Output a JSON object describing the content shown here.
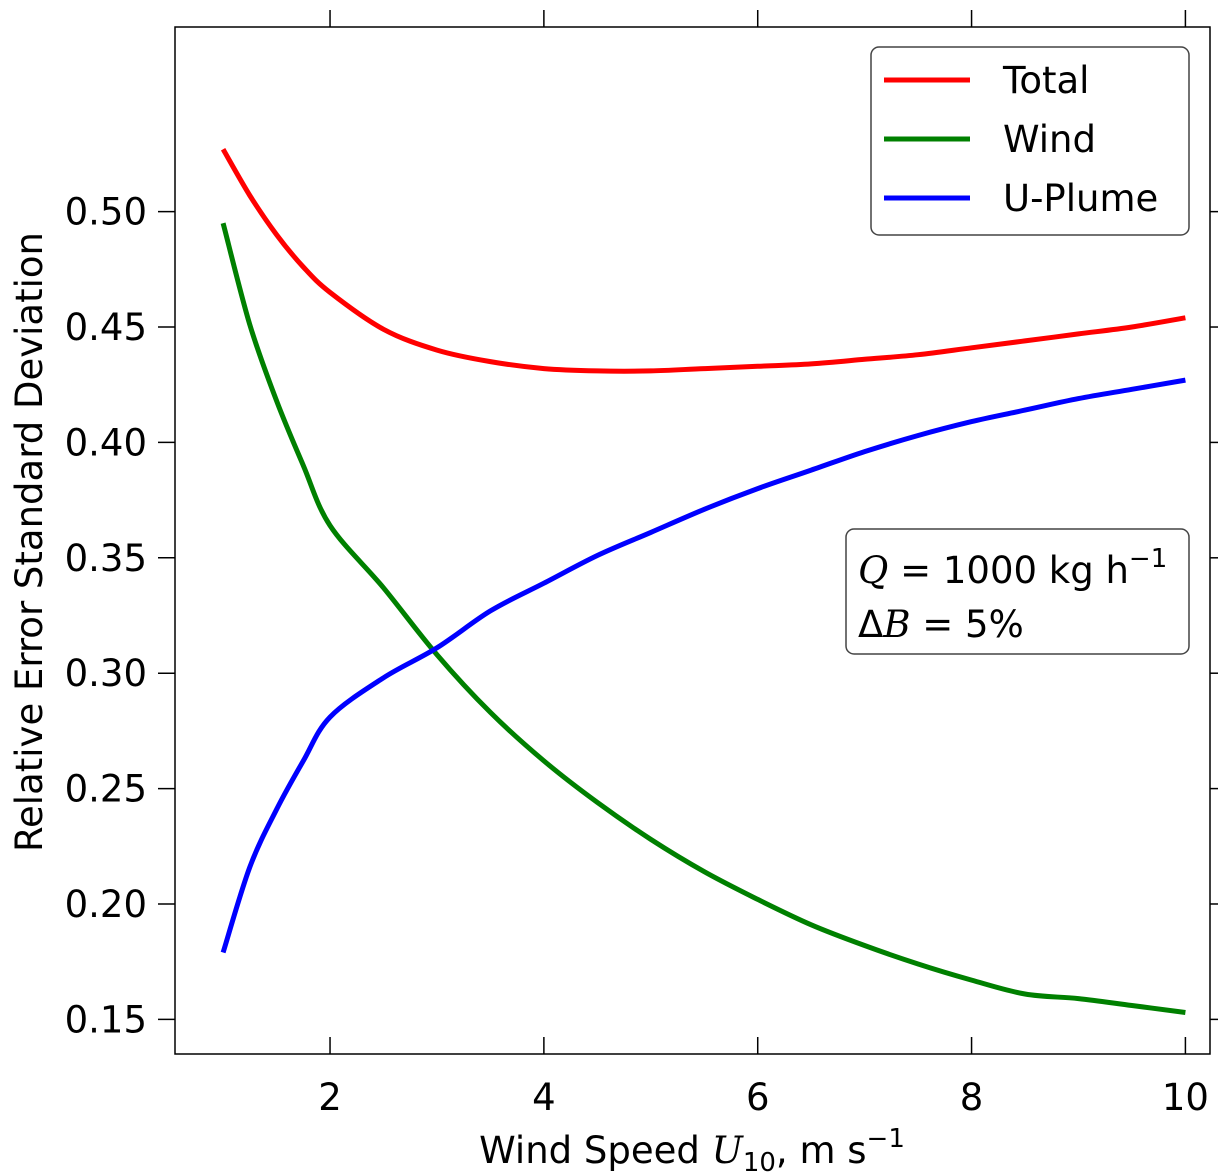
{
  "chart_data": {
    "type": "line",
    "title": "",
    "xlabel_prefix": "Wind Speed ",
    "xlabel_var": "U",
    "xlabel_sub": "10",
    "xlabel_unit": ", m s",
    "xlabel_sup": "−1",
    "ylabel": "Relative Error Standard Deviation",
    "xlim": [
      0.55,
      10.23
    ],
    "ylim": [
      0.135,
      0.58
    ],
    "xticks": [
      2,
      4,
      6,
      8,
      10
    ],
    "xtick_labels": [
      "2",
      "4",
      "6",
      "8",
      "10"
    ],
    "yticks": [
      0.15,
      0.2,
      0.25,
      0.3,
      0.35,
      0.4,
      0.45,
      0.5
    ],
    "ytick_labels": [
      "0.15",
      "0.20",
      "0.25",
      "0.30",
      "0.35",
      "0.40",
      "0.45",
      "0.50"
    ],
    "grid": false,
    "legend_position": "top-right",
    "x": [
      1,
      1.25,
      1.5,
      1.75,
      2,
      2.5,
      3,
      3.5,
      4,
      4.5,
      5,
      5.5,
      6,
      6.5,
      7,
      7.5,
      8,
      8.5,
      9,
      9.5,
      10
    ],
    "series": [
      {
        "name": "Total",
        "color": "#ff0000",
        "values": [
          0.527,
          0.507,
          0.49,
          0.476,
          0.465,
          0.449,
          0.44,
          0.435,
          0.432,
          0.431,
          0.431,
          0.432,
          0.433,
          0.434,
          0.436,
          0.438,
          0.441,
          0.444,
          0.447,
          0.45,
          0.454
        ]
      },
      {
        "name": "Wind",
        "color": "#008000",
        "values": [
          0.495,
          0.451,
          0.418,
          0.39,
          0.364,
          0.337,
          0.308,
          0.283,
          0.262,
          0.244,
          0.228,
          0.214,
          0.202,
          0.191,
          0.182,
          0.174,
          0.167,
          0.161,
          0.159,
          0.156,
          0.153
        ]
      },
      {
        "name": "U-Plume",
        "color": "#0000ff",
        "values": [
          0.179,
          0.216,
          0.241,
          0.262,
          0.281,
          0.298,
          0.311,
          0.327,
          0.339,
          0.351,
          0.361,
          0.371,
          0.38,
          0.388,
          0.396,
          0.403,
          0.409,
          0.414,
          0.419,
          0.423,
          0.427
        ]
      }
    ],
    "annotation": {
      "line1_var": "Q",
      "line1_rest": " = 1000 kg h",
      "line1_sup": "−1",
      "line2_delta": "Δ",
      "line2_var": "B",
      "line2_rest": " = 5%"
    }
  }
}
